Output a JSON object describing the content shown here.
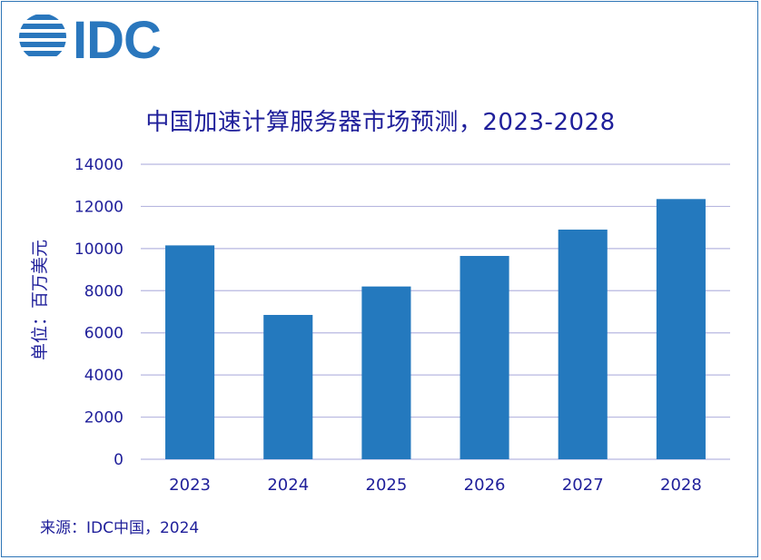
{
  "logo": {
    "text": "IDC",
    "color": "#2a77bd",
    "icon": "globe-stripes-icon"
  },
  "footer": {
    "source": "来源：IDC中国，2024"
  },
  "colors": {
    "bar": "#2479be",
    "grid": "#b7b7e0",
    "text": "#1f1f9a",
    "border": "#2e75b6"
  },
  "chart_data": {
    "type": "bar",
    "title": "中国加速计算服务器市场预测，2023-2028",
    "ylabel": "单位：百万美元",
    "xlabel": "",
    "categories": [
      "2023",
      "2024",
      "2025",
      "2026",
      "2027",
      "2028"
    ],
    "values": [
      10150,
      6850,
      8200,
      9650,
      10900,
      12350
    ],
    "ylim": [
      0,
      14000
    ],
    "yticks": [
      "0",
      "2000",
      "4000",
      "6000",
      "8000",
      "10000",
      "12000",
      "14000"
    ],
    "grid": true,
    "legend": "none"
  }
}
